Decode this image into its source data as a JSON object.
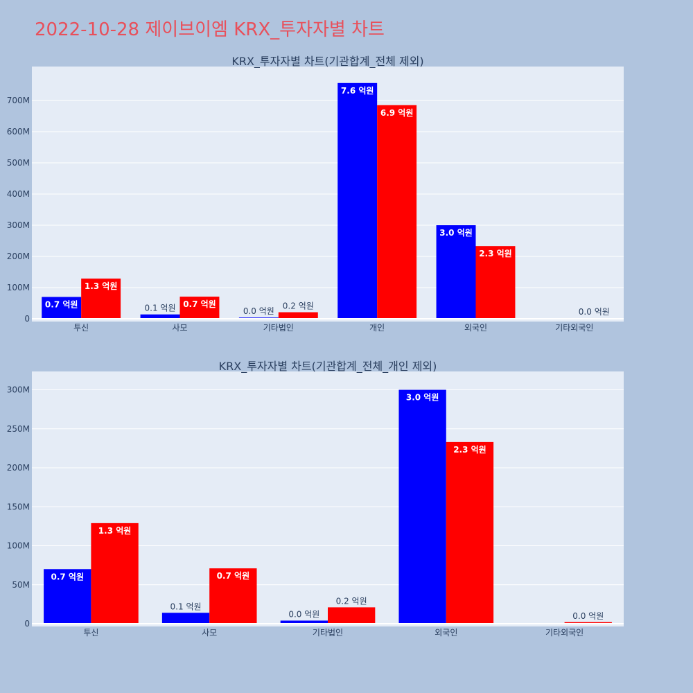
{
  "header": {
    "title": "2022-10-28 제이브이엠 KRX_투자자별 차트"
  },
  "colors": {
    "background": "#b0c4de",
    "plot_bg": "#e5ecf6",
    "grid": "#ffffff",
    "series_a": "#0000ff",
    "series_b": "#ff0000",
    "title": "#e8505b"
  },
  "chart_data": [
    {
      "type": "bar",
      "title": "KRX_투자자별 차트(기관합계_전체 제외)",
      "categories": [
        "투신",
        "사모",
        "기타법인",
        "개인",
        "외국인",
        "기타외국인"
      ],
      "series": [
        {
          "color": "#0000ff",
          "values": [
            70000000,
            14000000,
            4000000,
            756000000,
            300000000,
            0
          ],
          "labels": [
            "0.7 억원",
            "0.1 억원",
            "0.0 억원",
            "7.6 억원",
            "3.0 억원",
            ""
          ]
        },
        {
          "color": "#ff0000",
          "values": [
            129000000,
            71000000,
            21000000,
            685000000,
            233000000,
            2000000
          ],
          "labels": [
            "1.3 억원",
            "0.7 억원",
            "0.2 억원",
            "6.9 억원",
            "2.3 억원",
            "0.0 억원"
          ]
        }
      ],
      "ylim": [
        0,
        800000000
      ],
      "yticks": [
        0,
        100000000,
        200000000,
        300000000,
        400000000,
        500000000,
        600000000,
        700000000
      ],
      "ytick_labels": [
        "0",
        "100M",
        "200M",
        "300M",
        "400M",
        "500M",
        "600M",
        "700M"
      ],
      "grid": true
    },
    {
      "type": "bar",
      "title": "KRX_투자자별 차트(기관합계_전체_개인 제외)",
      "categories": [
        "투신",
        "사모",
        "기타법인",
        "외국인",
        "기타외국인"
      ],
      "series": [
        {
          "color": "#0000ff",
          "values": [
            70000000,
            14000000,
            4000000,
            300000000,
            0
          ],
          "labels": [
            "0.7 억원",
            "0.1 억원",
            "0.0 억원",
            "3.0 억원",
            ""
          ]
        },
        {
          "color": "#ff0000",
          "values": [
            129000000,
            71000000,
            21000000,
            233000000,
            2000000
          ],
          "labels": [
            "1.3 억원",
            "0.7 억원",
            "0.2 억원",
            "2.3 억원",
            "0.0 억원"
          ]
        }
      ],
      "ylim": [
        0,
        320000000
      ],
      "yticks": [
        0,
        50000000,
        100000000,
        150000000,
        200000000,
        250000000,
        300000000
      ],
      "ytick_labels": [
        "0",
        "50M",
        "100M",
        "150M",
        "200M",
        "250M",
        "300M"
      ],
      "grid": true
    }
  ]
}
